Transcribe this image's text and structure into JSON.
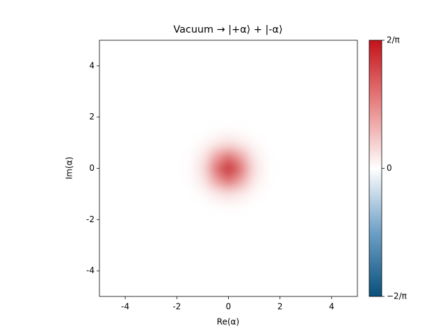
{
  "chart_data": {
    "type": "heatmap",
    "title": "Vacuum → |+α⟩ + |-α⟩",
    "xlabel": "Re(α)",
    "ylabel": "Im(α)",
    "x": [
      -2,
      -1.5,
      -1,
      -0.5,
      0,
      0.5,
      1,
      1.5,
      2
    ],
    "y": [
      -2,
      -1.5,
      -1,
      -0.5,
      0,
      0.5,
      1,
      1.5,
      2
    ],
    "z": [
      [
        0,
        0,
        0,
        0,
        0,
        0,
        0,
        0,
        0
      ],
      [
        0,
        0,
        0.001,
        0.004,
        0.007,
        0.004,
        0.001,
        0,
        0
      ],
      [
        0,
        0.001,
        0.012,
        0.052,
        0.086,
        0.052,
        0.012,
        0.001,
        0
      ],
      [
        0,
        0.004,
        0.052,
        0.234,
        0.386,
        0.234,
        0.052,
        0.004,
        0
      ],
      [
        0,
        0.007,
        0.086,
        0.386,
        0.637,
        0.386,
        0.086,
        0.007,
        0
      ],
      [
        0,
        0.004,
        0.052,
        0.234,
        0.386,
        0.234,
        0.052,
        0.004,
        0
      ],
      [
        0,
        0.001,
        0.012,
        0.052,
        0.086,
        0.052,
        0.012,
        0.001,
        0
      ],
      [
        0,
        0,
        0.001,
        0.004,
        0.007,
        0.004,
        0.001,
        0,
        0
      ],
      [
        0,
        0,
        0,
        0,
        0,
        0,
        0,
        0,
        0
      ]
    ],
    "xlim": [
      -5,
      5
    ],
    "ylim": [
      -5,
      5
    ],
    "xticks": [
      -4,
      -2,
      0,
      2,
      4
    ],
    "yticks": [
      -4,
      -2,
      0,
      2,
      4
    ],
    "zlim": [
      -0.6366,
      0.6366
    ],
    "zticks": [
      {
        "value": -0.6366,
        "label": "−2/π"
      },
      0,
      {
        "value": 0.6366,
        "label": "2/π"
      }
    ],
    "colormap": [
      "#08507c",
      "#6ea0c6",
      "#ffffff",
      "#e88585",
      "#c4121a"
    ]
  }
}
